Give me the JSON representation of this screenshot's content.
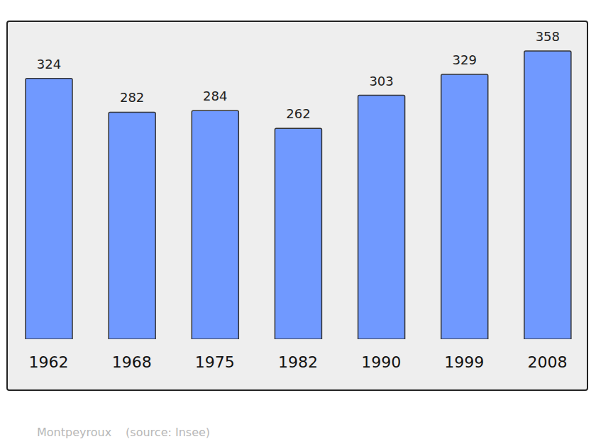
{
  "chart_data": {
    "type": "bar",
    "categories": [
      "1962",
      "1968",
      "1975",
      "1982",
      "1990",
      "1999",
      "2008"
    ],
    "values": [
      324,
      282,
      284,
      262,
      303,
      329,
      358
    ],
    "color": "#7099ff",
    "ylim": [
      0,
      395
    ],
    "data_labels": true,
    "tick_labels": "x",
    "grid": false,
    "annotations": [
      "Montpeyroux",
      "(source: Insee)"
    ]
  }
}
